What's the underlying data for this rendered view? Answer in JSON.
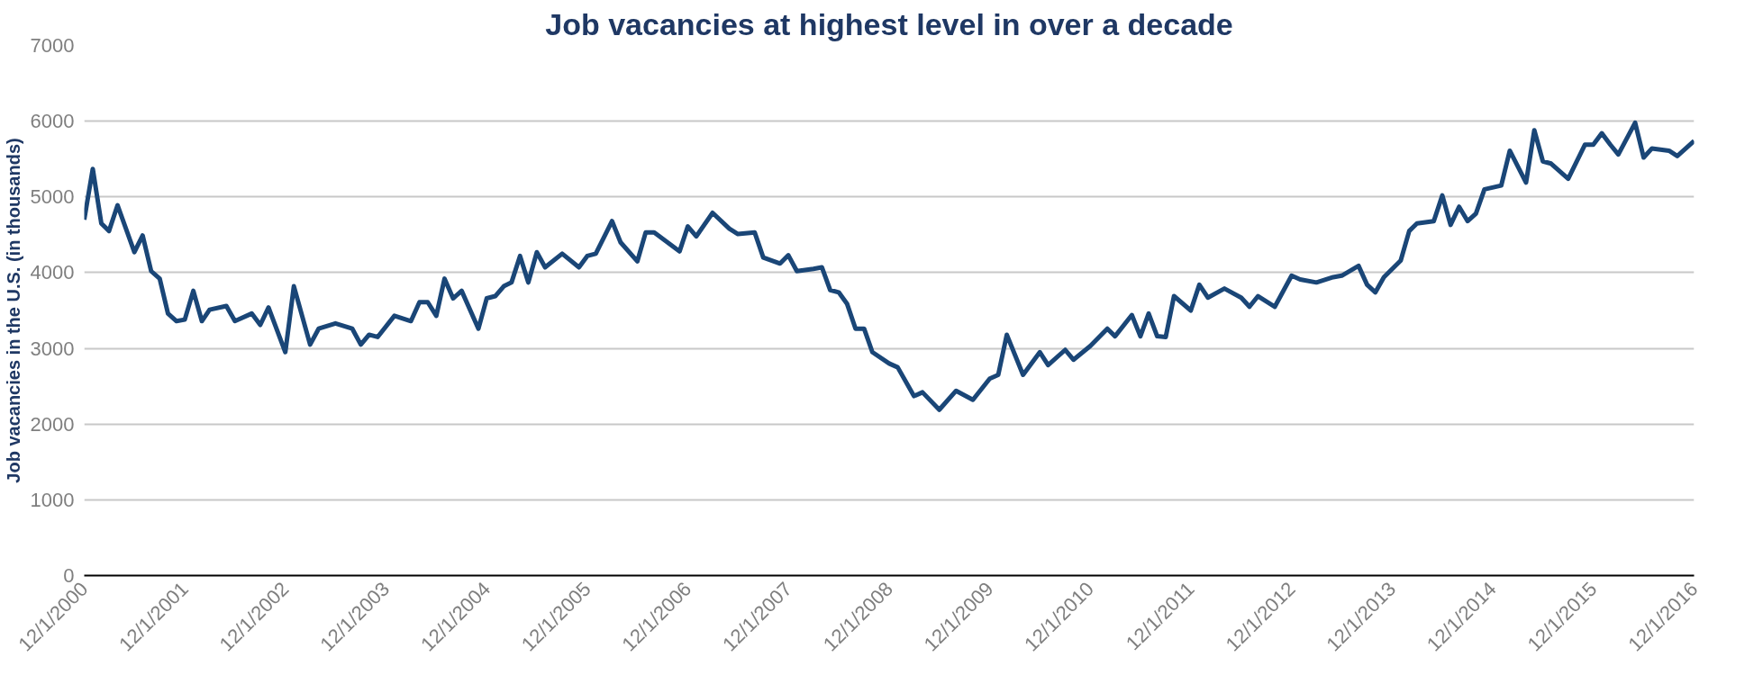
{
  "chart_data": {
    "type": "line",
    "title": "Job vacancies at highest level in over a decade",
    "ylabel": "Job vacancies in the U.S. (in thousands)",
    "x": [
      "2000-12",
      "2001-01",
      "2001-02",
      "2001-03",
      "2001-04",
      "2001-06",
      "2001-07",
      "2001-08",
      "2001-09",
      "2001-10",
      "2001-11",
      "2001-12",
      "2002-01",
      "2002-02",
      "2002-03",
      "2002-05",
      "2002-06",
      "2002-08",
      "2002-09",
      "2002-10",
      "2002-12",
      "2003-01",
      "2003-03",
      "2003-04",
      "2003-06",
      "2003-08",
      "2003-09",
      "2003-10",
      "2003-11",
      "2004-01",
      "2004-03",
      "2004-04",
      "2004-05",
      "2004-06",
      "2004-07",
      "2004-08",
      "2004-09",
      "2004-11",
      "2004-12",
      "2005-01",
      "2005-02",
      "2005-03",
      "2005-04",
      "2005-05",
      "2005-06",
      "2005-07",
      "2005-09",
      "2005-11",
      "2005-12",
      "2006-01",
      "2006-03",
      "2006-04",
      "2006-06",
      "2006-07",
      "2006-08",
      "2006-11",
      "2006-12",
      "2007-01",
      "2007-03",
      "2007-05",
      "2007-06",
      "2007-08",
      "2007-09",
      "2007-11",
      "2007-12",
      "2008-01",
      "2008-03",
      "2008-04",
      "2008-05",
      "2008-06",
      "2008-07",
      "2008-08",
      "2008-09",
      "2008-10",
      "2008-12",
      "2009-01",
      "2009-03",
      "2009-04",
      "2009-06",
      "2009-08",
      "2009-10",
      "2009-12",
      "2010-01",
      "2010-02",
      "2010-04",
      "2010-06",
      "2010-07",
      "2010-09",
      "2010-10",
      "2010-12",
      "2011-02",
      "2011-03",
      "2011-05",
      "2011-06",
      "2011-07",
      "2011-08",
      "2011-09",
      "2011-10",
      "2011-12",
      "2012-01",
      "2012-02",
      "2012-04",
      "2012-06",
      "2012-07",
      "2012-08",
      "2012-10",
      "2012-12",
      "2013-01",
      "2013-03",
      "2013-05",
      "2013-06",
      "2013-08",
      "2013-09",
      "2013-10",
      "2013-11",
      "2014-01",
      "2014-02",
      "2014-03",
      "2014-05",
      "2014-06",
      "2014-07",
      "2014-08",
      "2014-09",
      "2014-10",
      "2014-11",
      "2015-01",
      "2015-02",
      "2015-04",
      "2015-05",
      "2015-06",
      "2015-07",
      "2015-09",
      "2015-11",
      "2015-12",
      "2016-01",
      "2016-02",
      "2016-03",
      "2016-05",
      "2016-06",
      "2016-07",
      "2016-09",
      "2016-10",
      "2016-11",
      "2016-12"
    ],
    "series": [
      {
        "color": "#1a4677",
        "values": [
          4700,
          5370,
          4650,
          4550,
          4890,
          4270,
          4490,
          4020,
          3920,
          3460,
          3360,
          3380,
          3760,
          3360,
          3510,
          3560,
          3360,
          3460,
          3310,
          3540,
          2950,
          3820,
          3050,
          3260,
          3330,
          3260,
          3050,
          3180,
          3150,
          3430,
          3360,
          3610,
          3610,
          3430,
          3920,
          3660,
          3760,
          3260,
          3660,
          3690,
          3820,
          3870,
          4220,
          3870,
          4270,
          4070,
          4250,
          4070,
          4220,
          4250,
          4680,
          4400,
          4150,
          4530,
          4530,
          4280,
          4610,
          4480,
          4790,
          4580,
          4510,
          4530,
          4200,
          4120,
          4230,
          4020,
          4050,
          4070,
          3770,
          3740,
          3590,
          3260,
          3260,
          2950,
          2800,
          2750,
          2370,
          2420,
          2190,
          2440,
          2320,
          2600,
          2650,
          3180,
          2650,
          2950,
          2780,
          2980,
          2850,
          3030,
          3260,
          3160,
          3440,
          3160,
          3460,
          3160,
          3150,
          3690,
          3500,
          3840,
          3670,
          3790,
          3670,
          3550,
          3690,
          3550,
          3960,
          3910,
          3870,
          3940,
          3960,
          4090,
          3840,
          3740,
          3940,
          4160,
          4550,
          4650,
          4680,
          5020,
          4630,
          4870,
          4680,
          4780,
          5100,
          5150,
          5610,
          5190,
          5880,
          5470,
          5440,
          5240,
          5690,
          5690,
          5840,
          5690,
          5560,
          5980,
          5520,
          5640,
          5610,
          5540,
          5640,
          5740
        ]
      }
    ],
    "xlim": [
      "2000-12",
      "2016-12"
    ],
    "xticks": [
      {
        "value": "2000-12",
        "label": "12/1/2000"
      },
      {
        "value": "2001-12",
        "label": "12/1/2001"
      },
      {
        "value": "2002-12",
        "label": "12/1/2002"
      },
      {
        "value": "2003-12",
        "label": "12/1/2003"
      },
      {
        "value": "2004-12",
        "label": "12/1/2004"
      },
      {
        "value": "2005-12",
        "label": "12/1/2005"
      },
      {
        "value": "2006-12",
        "label": "12/1/2006"
      },
      {
        "value": "2007-12",
        "label": "12/1/2007"
      },
      {
        "value": "2008-12",
        "label": "12/1/2008"
      },
      {
        "value": "2009-12",
        "label": "12/1/2009"
      },
      {
        "value": "2010-12",
        "label": "12/1/2010"
      },
      {
        "value": "2011-12",
        "label": "12/1/2011"
      },
      {
        "value": "2012-12",
        "label": "12/1/2012"
      },
      {
        "value": "2013-12",
        "label": "12/1/2013"
      },
      {
        "value": "2014-12",
        "label": "12/1/2014"
      },
      {
        "value": "2015-12",
        "label": "12/1/2015"
      },
      {
        "value": "2016-12",
        "label": "12/1/2016"
      }
    ],
    "ylim": [
      0,
      7000
    ],
    "yticks": [
      0,
      1000,
      2000,
      3000,
      4000,
      5000,
      6000,
      7000
    ],
    "grid": "y",
    "line_style": "solid"
  }
}
